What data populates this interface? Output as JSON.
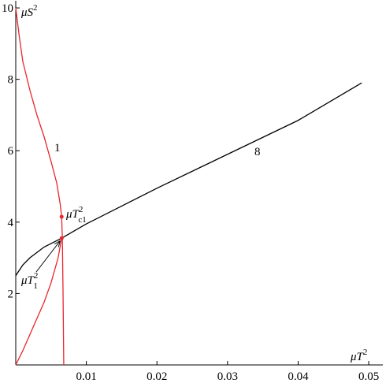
{
  "chart_data": {
    "type": "line",
    "x_label": {
      "base": "μT",
      "sup": "2"
    },
    "y_label": {
      "base": "μS",
      "sup": "2"
    },
    "xlim": [
      0,
      0.052
    ],
    "ylim": [
      0,
      10.2
    ],
    "xticks": [
      0.01,
      0.02,
      0.03,
      0.04,
      0.05
    ],
    "yticks": [
      2,
      4,
      6,
      8,
      10
    ],
    "grid": false,
    "series": [
      {
        "color": "#e8262c",
        "x": [
          0,
          0.0005,
          0.001,
          0.002,
          0.003,
          0.004,
          0.005,
          0.0058,
          0.0063,
          0.0065,
          0.0066,
          0.0067,
          0.0068
        ],
        "values": [
          10,
          9.2,
          8.5,
          7.7,
          7.0,
          6.4,
          5.7,
          5.1,
          4.5,
          4.15,
          3.55,
          2,
          0
        ]
      },
      {
        "color": "#e8262c",
        "x": [
          0,
          0.001,
          0.002,
          0.003,
          0.004,
          0.005,
          0.006,
          0.0065
        ],
        "values": [
          0,
          0.4,
          0.85,
          1.3,
          1.75,
          2.3,
          3.0,
          3.55
        ]
      },
      {
        "color": "#000000",
        "x": [
          0,
          0.001,
          0.002,
          0.004,
          0.0065,
          0.01,
          0.02,
          0.03,
          0.04,
          0.049
        ],
        "values": [
          2.5,
          2.8,
          3.0,
          3.3,
          3.55,
          3.95,
          4.95,
          5.9,
          6.85,
          7.9
        ]
      }
    ],
    "points": {
      "color": "#e8262c",
      "x": [
        0.0065,
        0.0065
      ],
      "values": [
        4.15,
        3.55
      ]
    },
    "annotations": [
      {
        "text": "1"
      },
      {
        "text": "8"
      },
      {
        "text": "μT",
        "sup": "2",
        "sub": "c1"
      },
      {
        "text": "μT",
        "sup": "2",
        "sub": "1"
      }
    ]
  }
}
